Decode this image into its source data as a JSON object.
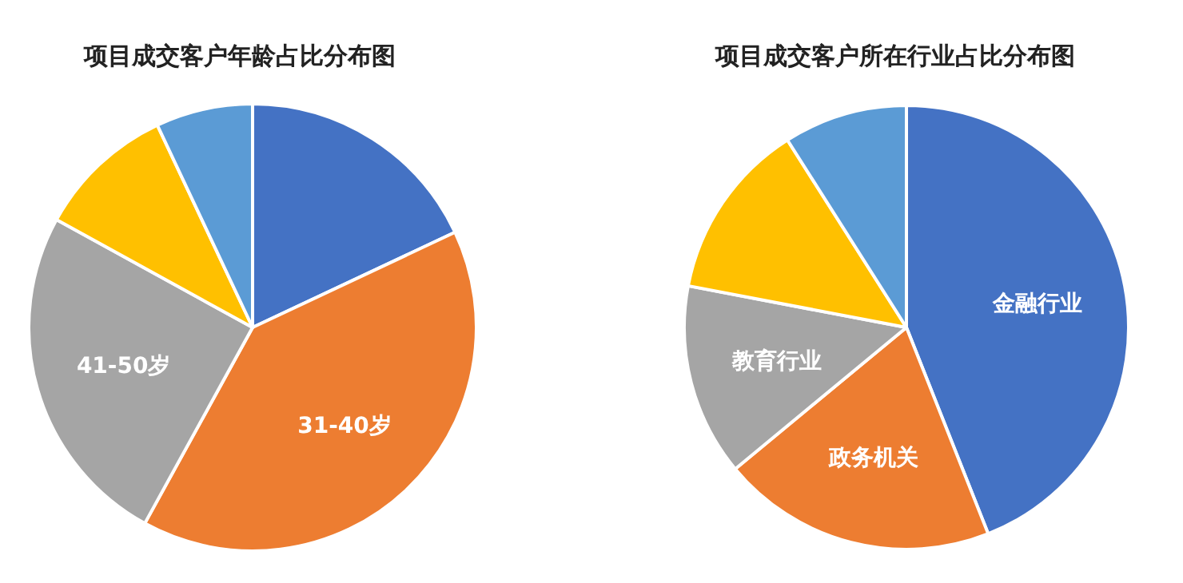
{
  "chart_data": [
    {
      "type": "pie",
      "title": "项目成交客户年龄占比分布图",
      "categories": [
        null,
        "31-40岁",
        "41-50岁",
        null,
        null
      ],
      "values": [
        18,
        40,
        25,
        10,
        7
      ],
      "colors": [
        "#4472c4",
        "#ed7d31",
        "#a5a5a5",
        "#ffc000",
        "#5b9bd5"
      ]
    },
    {
      "type": "pie",
      "title": "项目成交客户所在行业占比分布图",
      "categories": [
        "金融行业",
        "政务机关",
        "教育行业",
        null,
        null
      ],
      "values": [
        44,
        20,
        14,
        13,
        9
      ],
      "colors": [
        "#4472c4",
        "#ed7d31",
        "#a5a5a5",
        "#ffc000",
        "#5b9bd5"
      ]
    }
  ]
}
